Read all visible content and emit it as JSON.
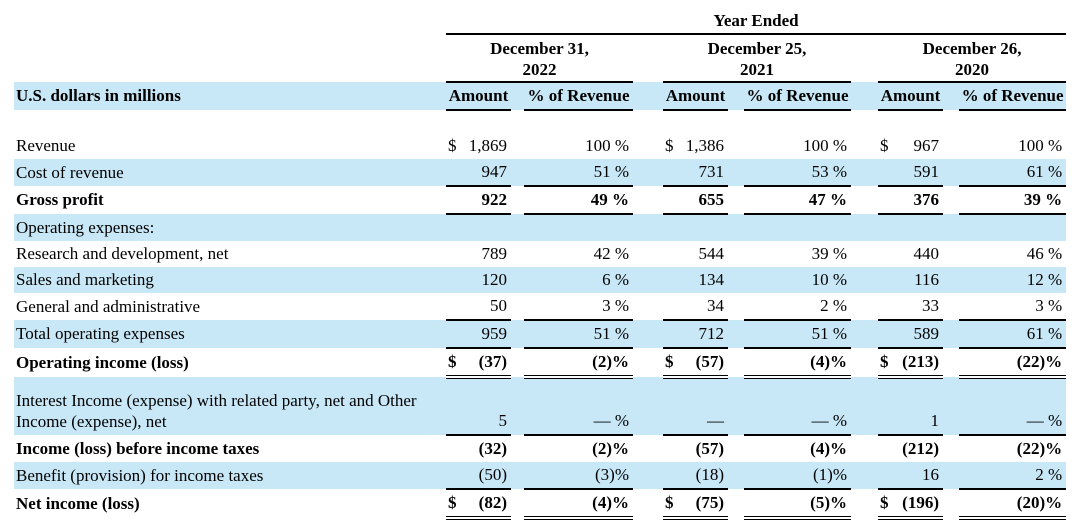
{
  "page": {
    "background": "#ffffff",
    "highlight_color": "#c9e8f7",
    "text_color": "#000000"
  },
  "table": {
    "corner_label": "U.S. dollars in millions",
    "top_header": "Year Ended",
    "periods": [
      {
        "line1": "December 31,",
        "line2": "2022"
      },
      {
        "line1": "December 25,",
        "line2": "2021"
      },
      {
        "line1": "December 26,",
        "line2": "2020"
      }
    ],
    "subheaders": {
      "amount": "Amount",
      "percent": "% of Revenue"
    },
    "rows": [
      {
        "label": "Revenue",
        "shaded": false,
        "bold": false,
        "border": "none",
        "cells": [
          {
            "d": "$",
            "v": "1,869"
          },
          {
            "v": "100 %"
          },
          {
            "d": "$",
            "v": "1,386"
          },
          {
            "v": "100 %"
          },
          {
            "d": "$",
            "v": "967"
          },
          {
            "v": "100 %"
          }
        ]
      },
      {
        "label": "Cost of revenue",
        "shaded": true,
        "bold": false,
        "border": "single",
        "cells": [
          {
            "v": "947"
          },
          {
            "v": "51 %"
          },
          {
            "v": "731"
          },
          {
            "v": "53 %"
          },
          {
            "v": "591"
          },
          {
            "v": "61 %"
          }
        ]
      },
      {
        "label": "Gross profit",
        "shaded": false,
        "bold": true,
        "border": "single",
        "cells": [
          {
            "v": "922"
          },
          {
            "v": "49 %"
          },
          {
            "v": "655"
          },
          {
            "v": "47 %"
          },
          {
            "v": "376"
          },
          {
            "v": "39 %"
          }
        ]
      },
      {
        "label": "Operating expenses:",
        "shaded": true,
        "bold": false,
        "border": "none",
        "cells": [
          {
            "v": ""
          },
          {
            "v": ""
          },
          {
            "v": ""
          },
          {
            "v": ""
          },
          {
            "v": ""
          },
          {
            "v": ""
          }
        ]
      },
      {
        "label": "Research and development, net",
        "shaded": false,
        "bold": false,
        "border": "none",
        "cells": [
          {
            "v": "789"
          },
          {
            "v": "42 %"
          },
          {
            "v": "544"
          },
          {
            "v": "39 %"
          },
          {
            "v": "440"
          },
          {
            "v": "46 %"
          }
        ]
      },
      {
        "label": "Sales and marketing",
        "shaded": true,
        "bold": false,
        "border": "none",
        "cells": [
          {
            "v": "120"
          },
          {
            "v": "6 %"
          },
          {
            "v": "134"
          },
          {
            "v": "10 %"
          },
          {
            "v": "116"
          },
          {
            "v": "12 %"
          }
        ]
      },
      {
        "label": "General and administrative",
        "shaded": false,
        "bold": false,
        "border": "single",
        "cells": [
          {
            "v": "50"
          },
          {
            "v": "3 %"
          },
          {
            "v": "34"
          },
          {
            "v": "2 %"
          },
          {
            "v": "33"
          },
          {
            "v": "3 %"
          }
        ]
      },
      {
        "label": "Total operating expenses",
        "shaded": true,
        "bold": false,
        "border": "single",
        "cells": [
          {
            "v": "959"
          },
          {
            "v": "51 %"
          },
          {
            "v": "712"
          },
          {
            "v": "51 %"
          },
          {
            "v": "589"
          },
          {
            "v": "61 %"
          }
        ]
      },
      {
        "label": "Operating income (loss)",
        "shaded": false,
        "bold": true,
        "border": "double",
        "cells": [
          {
            "d": "$",
            "v": "(37)"
          },
          {
            "v": "(2)%"
          },
          {
            "d": "$",
            "v": "(57)"
          },
          {
            "v": "(4)%"
          },
          {
            "d": "$",
            "v": "(213)"
          },
          {
            "v": "(22)%"
          }
        ]
      },
      {
        "label": "Interest Income (expense) with related party, net and Other Income (expense), net",
        "shaded": true,
        "bold": false,
        "border": "single",
        "tall": true,
        "cells": [
          {
            "v": "5"
          },
          {
            "v": "— %"
          },
          {
            "v": "—"
          },
          {
            "v": "— %"
          },
          {
            "v": "1"
          },
          {
            "v": "— %"
          }
        ]
      },
      {
        "label": "Income (loss) before income taxes",
        "shaded": false,
        "bold": true,
        "border": "none",
        "cells": [
          {
            "v": "(32)"
          },
          {
            "v": "(2)%"
          },
          {
            "v": "(57)"
          },
          {
            "v": "(4)%"
          },
          {
            "v": "(212)"
          },
          {
            "v": "(22)%"
          }
        ]
      },
      {
        "label": "Benefit (provision) for income taxes",
        "shaded": true,
        "bold": false,
        "border": "single",
        "cells": [
          {
            "v": "(50)"
          },
          {
            "v": "(3)%"
          },
          {
            "v": "(18)"
          },
          {
            "v": "(1)%"
          },
          {
            "v": "16"
          },
          {
            "v": "2 %"
          }
        ]
      },
      {
        "label": "Net income (loss)",
        "shaded": false,
        "bold": true,
        "border": "double",
        "cells": [
          {
            "d": "$",
            "v": "(82)"
          },
          {
            "v": "(4)%"
          },
          {
            "d": "$",
            "v": "(75)"
          },
          {
            "v": "(5)%"
          },
          {
            "d": "$",
            "v": "(196)"
          },
          {
            "v": "(20)%"
          }
        ]
      }
    ]
  }
}
